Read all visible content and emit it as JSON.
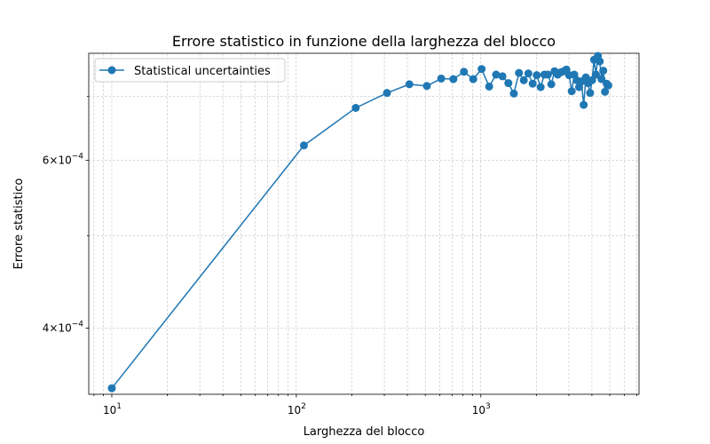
{
  "chart_data": {
    "type": "line",
    "title": "Errore statistico in funzione della larghezza del blocco",
    "xlabel": "Larghezza del blocco",
    "ylabel": "Errore statistico",
    "x_scale": "log",
    "y_scale": "log",
    "xlim": [
      7.5,
      7200
    ],
    "ylim": [
      0.000341,
      0.000777
    ],
    "grid": true,
    "legend_position": "top-left",
    "x_ticks": [
      {
        "value": 10,
        "base": "10",
        "exp": "1"
      },
      {
        "value": 100,
        "base": "10",
        "exp": "2"
      },
      {
        "value": 1000,
        "base": "10",
        "exp": "3"
      }
    ],
    "y_ticks": [
      {
        "value": 0.0004,
        "mant": "4",
        "base": "10",
        "exp": "−4"
      },
      {
        "value": 0.0006,
        "mant": "6",
        "base": "10",
        "exp": "−4"
      }
    ],
    "series": [
      {
        "name": "Statistical uncertainties",
        "color": "#1f77b4",
        "x": [
          10,
          110,
          210,
          310,
          410,
          510,
          610,
          710,
          810,
          910,
          1010,
          1110,
          1210,
          1310,
          1410,
          1510,
          1610,
          1710,
          1810,
          1910,
          2010,
          2110,
          2210,
          2310,
          2410,
          2510,
          2610,
          2710,
          2810,
          2910,
          3010,
          3110,
          3210,
          3310,
          3410,
          3510,
          3610,
          3710,
          3810,
          3910,
          4010,
          4110,
          4210,
          4310,
          4410,
          4510,
          4610,
          4710,
          4810,
          4910
        ],
        "y": [
          0.000346,
          0.000622,
          0.000681,
          0.000706,
          0.000721,
          0.000718,
          0.000731,
          0.00073,
          0.000743,
          0.00073,
          0.000748,
          0.000717,
          0.000738,
          0.000735,
          0.000723,
          0.000705,
          0.000741,
          0.000728,
          0.00074,
          0.000722,
          0.000737,
          0.000716,
          0.000738,
          0.000738,
          0.000721,
          0.000744,
          0.000738,
          0.000742,
          0.000744,
          0.000747,
          0.000737,
          0.000709,
          0.000738,
          0.000728,
          0.000716,
          0.000726,
          0.000686,
          0.000733,
          0.000723,
          0.000706,
          0.000728,
          0.000765,
          0.000738,
          0.000772,
          0.000762,
          0.00073,
          0.000745,
          0.000708,
          0.000722,
          0.000719
        ]
      }
    ]
  }
}
